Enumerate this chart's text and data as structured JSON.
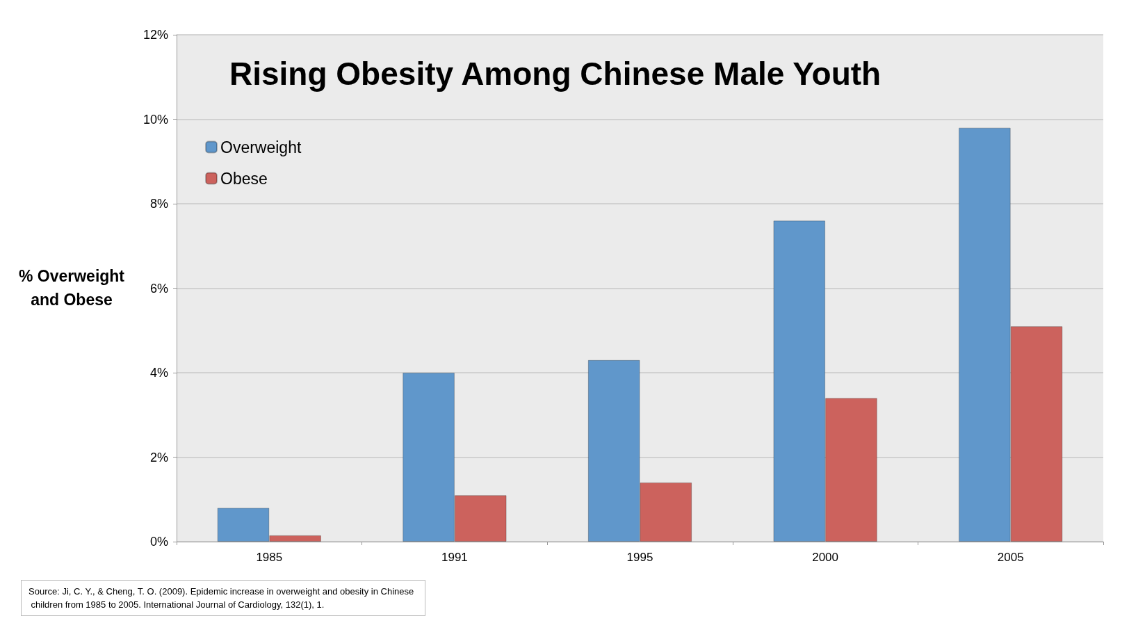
{
  "chart_data": {
    "type": "bar",
    "title": "Rising Obesity Among Chinese Male Youth",
    "ylabel": "% Overweight and Obese",
    "categories": [
      "1985",
      "1991",
      "1995",
      "2000",
      "2005"
    ],
    "series": [
      {
        "name": "Overweight",
        "color": "#6097cb",
        "values": [
          0.8,
          4.0,
          4.3,
          7.6,
          9.8
        ]
      },
      {
        "name": "Obese",
        "color": "#cc625d",
        "values": [
          0.15,
          1.1,
          1.4,
          3.4,
          5.1
        ]
      }
    ],
    "ylim": [
      0,
      12
    ],
    "yticks": [
      {
        "value": 0,
        "label": "0%"
      },
      {
        "value": 2,
        "label": "2%"
      },
      {
        "value": 4,
        "label": "4%"
      },
      {
        "value": 6,
        "label": "6%"
      },
      {
        "value": 8,
        "label": "8%"
      },
      {
        "value": 10,
        "label": "10%"
      },
      {
        "value": 12,
        "label": "12%"
      }
    ],
    "grid": true,
    "legend": "top left",
    "annotations": [
      "Source: Ji, C. Y., & Cheng, T. O. (2009). Epidemic increase in overweight and obesity in Chinese children from 1985 to 2005. International Journal of Cardiology, 132(1), 1."
    ]
  }
}
